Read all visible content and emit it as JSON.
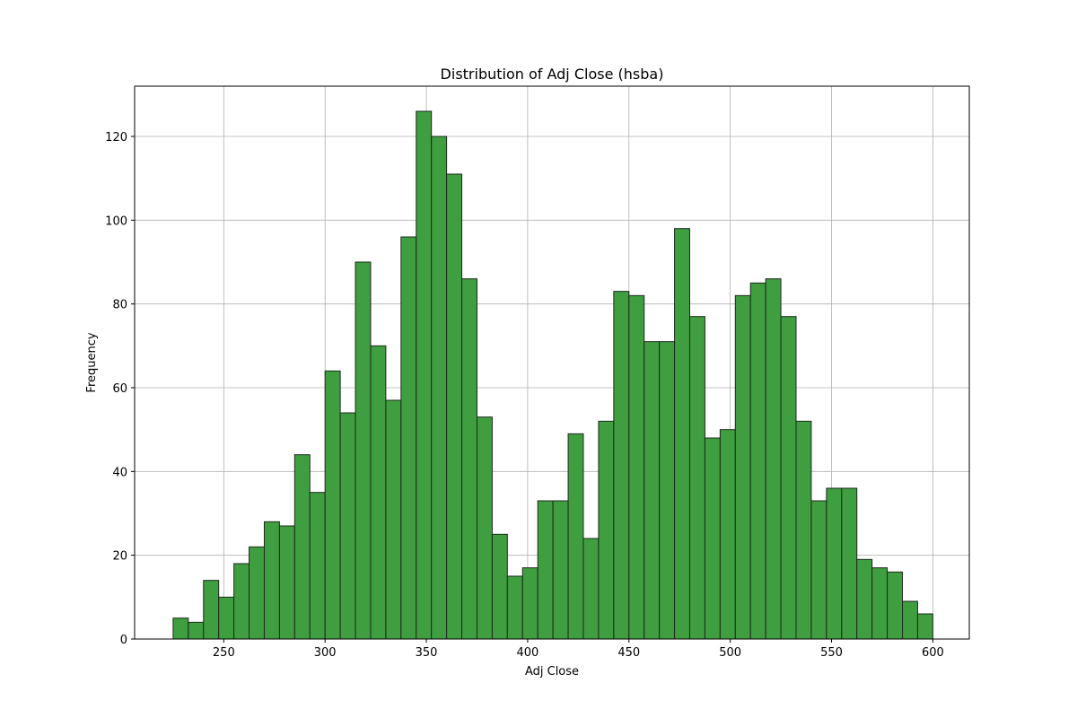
{
  "chart_data": {
    "type": "bar",
    "title": "Distribution of Adj Close (hsba)",
    "xlabel": "Adj Close",
    "ylabel": "Frequency",
    "xlim": [
      206,
      618
    ],
    "ylim": [
      0,
      132
    ],
    "xticks": [
      250,
      300,
      350,
      400,
      450,
      500,
      550,
      600
    ],
    "yticks": [
      0,
      20,
      40,
      60,
      80,
      100,
      120
    ],
    "grid": true,
    "bar_color": "#3f9e3f",
    "edge_color": "#1e2a1e",
    "bins": {
      "start": 225,
      "width": 7.5,
      "counts": [
        5,
        4,
        14,
        10,
        18,
        22,
        28,
        27,
        44,
        35,
        64,
        54,
        90,
        70,
        57,
        96,
        126,
        120,
        111,
        86,
        53,
        25,
        15,
        17,
        33,
        33,
        49,
        24,
        52,
        83,
        82,
        71,
        71,
        98,
        77,
        48,
        50,
        82,
        85,
        86,
        77,
        52,
        33,
        36,
        36,
        19,
        17,
        16,
        9,
        6
      ]
    }
  }
}
